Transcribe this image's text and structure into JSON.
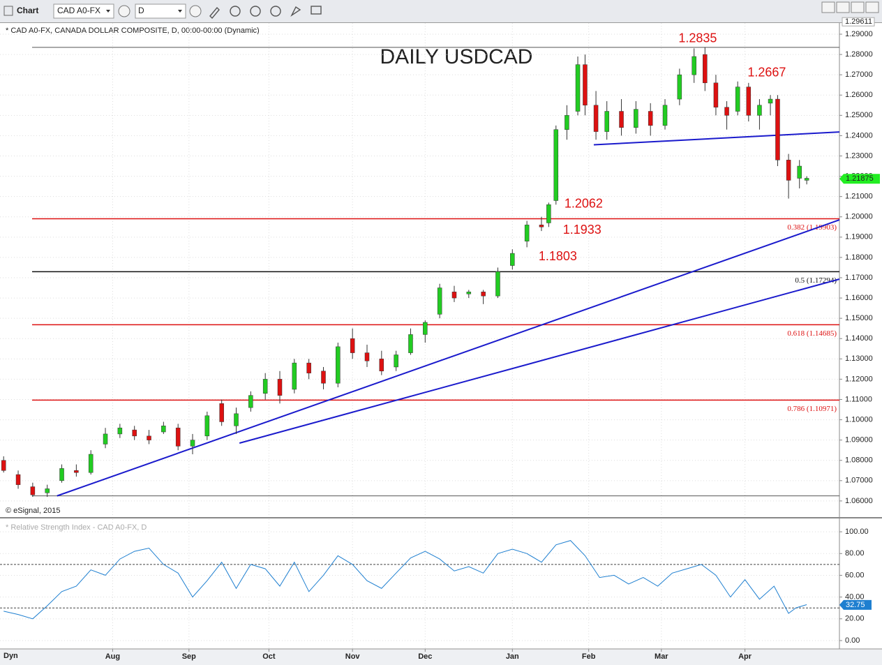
{
  "toolbar": {
    "title": "Chart",
    "symbol": "CAD A0-FX",
    "interval": "D"
  },
  "footer": {
    "mode": "Dyn"
  },
  "chart_data": [
    {
      "type": "candlestick",
      "title": "DAILY USDCAD",
      "subtitle": "* CAD A0-FX, CANADA DOLLAR COMPOSITE, D, 00:00-00:00 (Dynamic)",
      "credit": "© eSignal, 2015",
      "up_color": "#22cc22",
      "down_color": "#dd1111",
      "x": [
        0,
        4,
        8,
        12,
        16,
        20,
        24,
        28,
        32,
        36,
        40,
        44,
        48,
        52,
        56,
        60,
        64,
        68,
        72,
        76,
        80,
        84,
        88,
        92,
        96,
        100,
        104,
        108,
        112,
        116,
        120,
        124,
        128,
        132,
        136,
        140,
        144,
        148,
        150,
        152,
        155,
        158,
        160,
        163,
        166,
        170,
        174,
        178,
        182,
        186,
        190,
        193,
        196,
        199,
        202,
        205,
        208,
        211,
        213,
        216,
        219,
        221
      ],
      "open": [
        1.08,
        1.073,
        1.067,
        1.064,
        1.07,
        1.075,
        1.074,
        1.088,
        1.093,
        1.095,
        1.092,
        1.094,
        1.096,
        1.087,
        1.092,
        1.108,
        1.097,
        1.106,
        1.113,
        1.12,
        1.115,
        1.128,
        1.124,
        1.118,
        1.14,
        1.133,
        1.13,
        1.126,
        1.133,
        1.142,
        1.152,
        1.163,
        1.162,
        1.163,
        1.161,
        1.176,
        1.188,
        1.196,
        1.197,
        1.208,
        1.243,
        1.252,
        1.275,
        1.255,
        1.242,
        1.252,
        1.244,
        1.252,
        1.245,
        1.258,
        1.27,
        1.28,
        1.266,
        1.254,
        1.252,
        1.264,
        1.25,
        1.256,
        1.258,
        1.228,
        1.219,
        1.218
      ],
      "high": [
        1.082,
        1.075,
        1.069,
        1.068,
        1.078,
        1.078,
        1.085,
        1.096,
        1.098,
        1.097,
        1.095,
        1.099,
        1.098,
        1.093,
        1.104,
        1.11,
        1.106,
        1.114,
        1.123,
        1.124,
        1.13,
        1.13,
        1.126,
        1.138,
        1.145,
        1.137,
        1.134,
        1.134,
        1.145,
        1.149,
        1.167,
        1.166,
        1.164,
        1.164,
        1.175,
        1.184,
        1.198,
        1.2,
        1.207,
        1.245,
        1.255,
        1.279,
        1.28,
        1.262,
        1.257,
        1.258,
        1.257,
        1.256,
        1.258,
        1.273,
        1.283,
        1.2835,
        1.27,
        1.257,
        1.2667,
        1.266,
        1.258,
        1.26,
        1.26,
        1.231,
        1.228,
        1.22
      ],
      "low": [
        1.074,
        1.066,
        1.062,
        1.062,
        1.069,
        1.072,
        1.073,
        1.086,
        1.091,
        1.09,
        1.088,
        1.093,
        1.085,
        1.083,
        1.09,
        1.097,
        1.093,
        1.104,
        1.11,
        1.108,
        1.113,
        1.12,
        1.115,
        1.116,
        1.13,
        1.126,
        1.122,
        1.124,
        1.132,
        1.138,
        1.15,
        1.158,
        1.16,
        1.157,
        1.16,
        1.174,
        1.185,
        1.193,
        1.195,
        1.206,
        1.238,
        1.25,
        1.25,
        1.238,
        1.238,
        1.24,
        1.241,
        1.24,
        1.243,
        1.255,
        1.266,
        1.262,
        1.25,
        1.243,
        1.25,
        1.247,
        1.243,
        1.25,
        1.225,
        1.209,
        1.214,
        1.216
      ],
      "close": [
        1.075,
        1.068,
        1.063,
        1.066,
        1.076,
        1.074,
        1.083,
        1.093,
        1.096,
        1.092,
        1.09,
        1.097,
        1.087,
        1.09,
        1.102,
        1.099,
        1.103,
        1.112,
        1.12,
        1.112,
        1.128,
        1.123,
        1.118,
        1.136,
        1.133,
        1.129,
        1.124,
        1.132,
        1.142,
        1.148,
        1.165,
        1.16,
        1.163,
        1.161,
        1.173,
        1.182,
        1.196,
        1.195,
        1.206,
        1.243,
        1.25,
        1.275,
        1.255,
        1.242,
        1.252,
        1.244,
        1.253,
        1.245,
        1.255,
        1.27,
        1.279,
        1.266,
        1.254,
        1.25,
        1.264,
        1.25,
        1.255,
        1.258,
        1.228,
        1.218,
        1.225,
        1.219
      ],
      "xlim": [
        -1,
        230
      ],
      "ylim": [
        1.0524,
        1.2955
      ],
      "yticks": [
        {
          "value": 1.06,
          "label": "1.06000"
        },
        {
          "value": 1.07,
          "label": "1.07000"
        },
        {
          "value": 1.08,
          "label": "1.08000"
        },
        {
          "value": 1.09,
          "label": "1.09000"
        },
        {
          "value": 1.1,
          "label": "1.10000"
        },
        {
          "value": 1.11,
          "label": "1.11000"
        },
        {
          "value": 1.12,
          "label": "1.12000"
        },
        {
          "value": 1.13,
          "label": "1.13000"
        },
        {
          "value": 1.14,
          "label": "1.14000"
        },
        {
          "value": 1.15,
          "label": "1.15000"
        },
        {
          "value": 1.16,
          "label": "1.16000"
        },
        {
          "value": 1.17,
          "label": "1.17000"
        },
        {
          "value": 1.18,
          "label": "1.18000"
        },
        {
          "value": 1.19,
          "label": "1.19000"
        },
        {
          "value": 1.2,
          "label": "1.20000"
        },
        {
          "value": 1.21,
          "label": "1.21000"
        },
        {
          "value": 1.22,
          "label": "1.22000"
        },
        {
          "value": 1.23,
          "label": "1.23000"
        },
        {
          "value": 1.24,
          "label": "1.24000"
        },
        {
          "value": 1.25,
          "label": "1.25000"
        },
        {
          "value": 1.26,
          "label": "1.26000"
        },
        {
          "value": 1.27,
          "label": "1.27000"
        },
        {
          "value": 1.28,
          "label": "1.28000"
        },
        {
          "value": 1.29,
          "label": "1.29000"
        }
      ],
      "axis_high": {
        "value": 1.29611,
        "label": "1.29611"
      },
      "last_price": {
        "value": 1.21875,
        "label": "1.21875"
      },
      "hlines": [
        {
          "value": 1.2835,
          "color": "#555555"
        },
        {
          "value": 1.19903,
          "label": "0.382 (1.19903)",
          "color": "#dd1111"
        },
        {
          "value": 1.17294,
          "label": "0.5 (1.17294)",
          "color": "#111111"
        },
        {
          "value": 1.14685,
          "label": "0.618 (1.14685)",
          "color": "#dd1111"
        },
        {
          "value": 1.10971,
          "label": "0.786 (1.10971)",
          "color": "#dd1111"
        },
        {
          "value": 1.0625,
          "color": "#555555"
        }
      ],
      "trendlines": [
        {
          "x": [
            14.7,
            230
          ],
          "y": [
            1.0625,
            1.1985
          ],
          "color": "#1a1acc"
        },
        {
          "x": [
            64.9,
            230
          ],
          "y": [
            1.0885,
            1.1693
          ],
          "color": "#1a1acc"
        },
        {
          "x": [
            162.4,
            230
          ],
          "y": [
            1.2355,
            1.2418
          ],
          "color": "#1a1acc"
        }
      ],
      "annotations": [
        {
          "x": 191,
          "value": 1.2835,
          "label": "1.2835"
        },
        {
          "x": 210,
          "value": 1.2667,
          "label": "1.2667"
        },
        {
          "x": 159.6,
          "value": 1.2062,
          "label": "1.2062"
        },
        {
          "x": 159.2,
          "value": 1.1933,
          "label": "1.1933"
        },
        {
          "x": 152.5,
          "value": 1.1803,
          "label": "1.1803"
        }
      ]
    },
    {
      "type": "line",
      "title": "* Relative Strength Index - CAD A0-FX, D",
      "color": "#1e7fd0",
      "x": [
        0,
        4,
        8,
        12,
        16,
        20,
        24,
        28,
        32,
        36,
        40,
        44,
        48,
        52,
        56,
        60,
        64,
        68,
        72,
        76,
        80,
        84,
        88,
        92,
        96,
        100,
        104,
        108,
        112,
        116,
        120,
        124,
        128,
        132,
        136,
        140,
        144,
        148,
        152,
        156,
        160,
        164,
        168,
        172,
        176,
        180,
        184,
        188,
        192,
        196,
        200,
        204,
        208,
        212,
        216,
        218,
        221
      ],
      "values": [
        27,
        24,
        20,
        32,
        45,
        50,
        65,
        60,
        75,
        82,
        85,
        70,
        62,
        40,
        55,
        72,
        48,
        70,
        66,
        50,
        72,
        45,
        60,
        78,
        70,
        55,
        48,
        62,
        76,
        82,
        75,
        64,
        68,
        62,
        80,
        84,
        80,
        72,
        88,
        92,
        78,
        58,
        60,
        52,
        58,
        50,
        62,
        66,
        70,
        60,
        40,
        56,
        38,
        50,
        25,
        30,
        33
      ],
      "last_value": {
        "value": 32.75,
        "label": "32.75"
      },
      "reference_lines": [
        30,
        70
      ],
      "xlim": [
        -1,
        230
      ],
      "ylim": [
        -7.7,
        111.6
      ],
      "yticks": [
        {
          "value": 0,
          "label": "0.00"
        },
        {
          "value": 20,
          "label": "20.00"
        },
        {
          "value": 40,
          "label": "40.00"
        },
        {
          "value": 60,
          "label": "60.00"
        },
        {
          "value": 80,
          "label": "80.00"
        },
        {
          "value": 100,
          "label": "100.00"
        }
      ],
      "xticks": [
        {
          "value": 30,
          "label": "Aug"
        },
        {
          "value": 51,
          "label": "Sep"
        },
        {
          "value": 73,
          "label": "Oct"
        },
        {
          "value": 96,
          "label": "Nov"
        },
        {
          "value": 116,
          "label": "Dec"
        },
        {
          "value": 140,
          "label": "Jan"
        },
        {
          "value": 161,
          "label": "Feb"
        },
        {
          "value": 181,
          "label": "Mar"
        },
        {
          "value": 204,
          "label": "Apr"
        }
      ]
    }
  ]
}
